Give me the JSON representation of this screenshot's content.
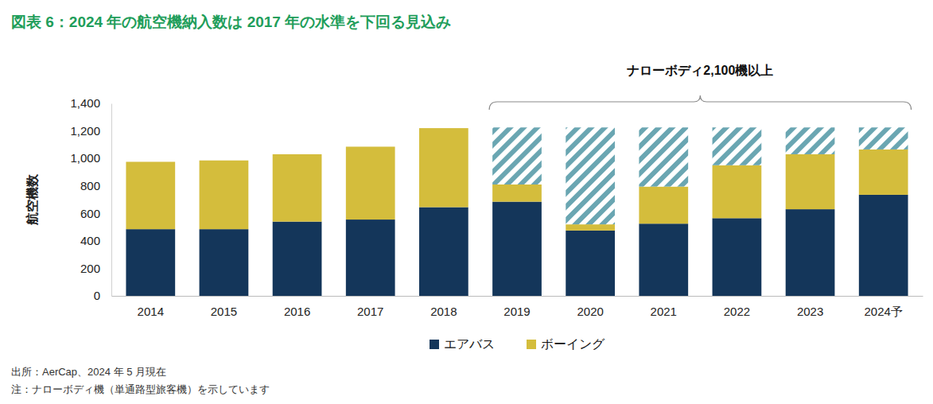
{
  "chart_data": {
    "type": "bar",
    "title": "図表 6：2024 年の航空機納入数は 2017 年の水準を下回る見込み",
    "y_label": "航空機数",
    "annotation": "ナローボディ2,100機以上",
    "source": "出所：AerCap、2024 年 5 月現在",
    "note": "注：ナローボディ機（単通路型旅客機）を示しています",
    "categories": [
      "2014",
      "2015",
      "2016",
      "2017",
      "2018",
      "2019",
      "2020",
      "2021",
      "2022",
      "2023",
      "2024予"
    ],
    "series": [
      {
        "name": "エアバス",
        "color": "#14365a",
        "values": [
          485,
          485,
          540,
          555,
          645,
          685,
          475,
          525,
          565,
          630,
          735
        ]
      },
      {
        "name": "ボーイング",
        "color": "#d4bd3c",
        "values": [
          490,
          500,
          490,
          530,
          575,
          125,
          45,
          270,
          385,
          400,
          330
        ]
      },
      {
        "color": "#6aa6b2",
        "values": [
          null,
          null,
          null,
          null,
          null,
          415,
          705,
          430,
          275,
          195,
          160
        ]
      }
    ],
    "stacked": true,
    "ylim": [
      0,
      1400
    ],
    "yticks": [
      0,
      200,
      400,
      600,
      800,
      {
        "value": 1000,
        "label": "1,000"
      },
      {
        "value": 1200,
        "label": "1,200"
      },
      {
        "value": 1400,
        "label": "1,400"
      }
    ],
    "grid": false,
    "legend": "bottom"
  }
}
